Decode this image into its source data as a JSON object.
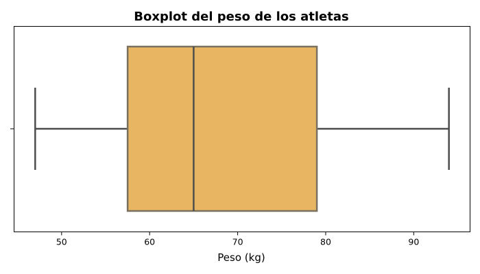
{
  "chart_data": {
    "type": "boxplot",
    "title": "Boxplot del peso de los atletas",
    "xlabel": "Peso (kg)",
    "ylabel": "",
    "orientation": "horizontal",
    "xlim": [
      44.6,
      96.4
    ],
    "xticks": [
      50,
      60,
      70,
      80,
      90
    ],
    "grid": false,
    "box": {
      "min": 47,
      "q1": 57.5,
      "median": 65,
      "q3": 79,
      "max": 94,
      "fill_color": "#e8b662",
      "edge_color": "#7a7060",
      "line_color": "#4d4d4d"
    }
  }
}
